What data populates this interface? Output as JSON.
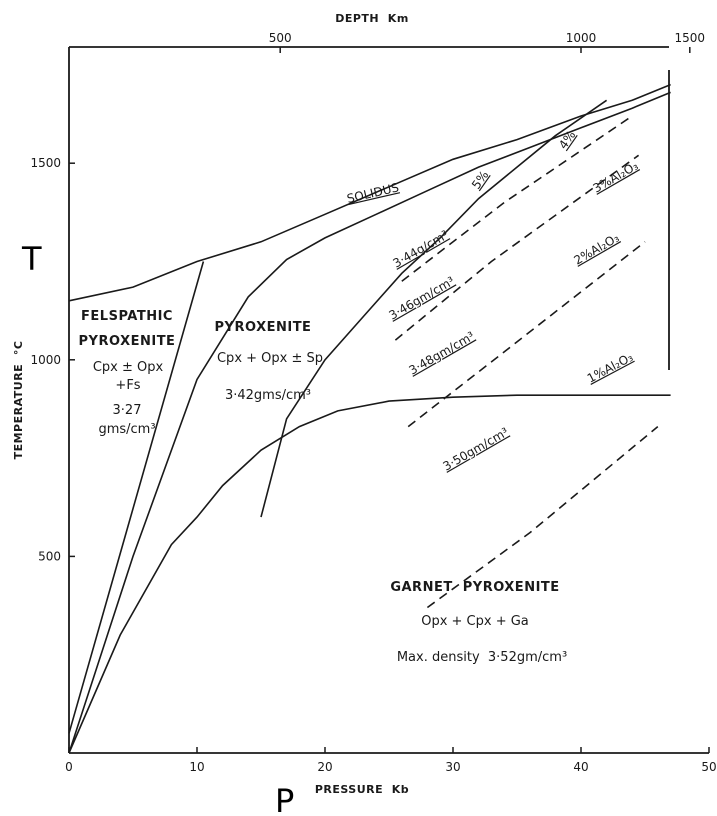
{
  "chart_data": {
    "type": "line",
    "title": "",
    "xlabel": "PRESSURE  Kb",
    "ylabel": "TEMPERATURE  °C",
    "top_axis_label": "DEPTH  Km",
    "xlim": [
      0,
      50
    ],
    "ylim": [
      0,
      1800
    ],
    "x_ticks": [
      "0",
      "10",
      "20",
      "30",
      "40",
      "50"
    ],
    "y_ticks": [
      "500",
      "1000",
      "1500"
    ],
    "top_ticks": [
      {
        "label": "500",
        "pressure": 16.5
      },
      {
        "label": "1000",
        "pressure": 40
      },
      {
        "label": "1500",
        "pressure": 48.5
      }
    ],
    "side_letters": {
      "y": "T",
      "x": "P"
    },
    "grid": false,
    "series": [
      {
        "name": "SOLIDUS",
        "style": "solid",
        "x": [
          0,
          5,
          10,
          15,
          20,
          25,
          30,
          35,
          40,
          44,
          47
        ],
        "y": [
          1150,
          1185,
          1250,
          1300,
          1370,
          1440,
          1510,
          1560,
          1620,
          1660,
          1700
        ]
      },
      {
        "name": "",
        "style": "solid",
        "x": [
          0,
          10.5
        ],
        "y": [
          50,
          1250
        ]
      },
      {
        "name": "",
        "style": "solid",
        "x": [
          0,
          5,
          10,
          14,
          17,
          20,
          24,
          28,
          32,
          36,
          40,
          44,
          47
        ],
        "y": [
          0,
          500,
          950,
          1160,
          1255,
          1310,
          1370,
          1430,
          1490,
          1540,
          1590,
          1640,
          1680
        ]
      },
      {
        "name": "",
        "style": "solid",
        "x": [
          0,
          4,
          8,
          10,
          12,
          15,
          18,
          21,
          25,
          30,
          35,
          40,
          47
        ],
        "y": [
          0,
          300,
          530,
          600,
          680,
          770,
          830,
          870,
          895,
          905,
          910,
          910,
          910
        ]
      },
      {
        "name": "5%",
        "style": "solid",
        "x": [
          15,
          17,
          20,
          23,
          26,
          29,
          32,
          35,
          38,
          42
        ],
        "y": [
          600,
          850,
          1000,
          1110,
          1220,
          1310,
          1410,
          1490,
          1570,
          1660
        ]
      },
      {
        "name": "4%",
        "style": "dashed",
        "x": [
          26,
          34,
          44
        ],
        "y": [
          1200,
          1400,
          1620
        ]
      },
      {
        "name": "3% Al2O3",
        "style": "dashed",
        "x": [
          25.5,
          33,
          44.5
        ],
        "y": [
          1050,
          1250,
          1520
        ]
      },
      {
        "name": "2% Al2O3",
        "style": "dashed",
        "x": [
          26.5,
          34,
          45
        ],
        "y": [
          830,
          1020,
          1300
        ]
      },
      {
        "name": "1% Al2O3",
        "style": "dashed",
        "x": [
          28,
          36,
          46
        ],
        "y": [
          370,
          560,
          830
        ]
      }
    ],
    "annotations": [
      {
        "text": "SOLIDUS"
      },
      {
        "text": "5%"
      },
      {
        "text": "4%"
      },
      {
        "text": "3%Al₂O₃"
      },
      {
        "text": "2%Al₂O₃"
      },
      {
        "text": "1%Al₂O₃"
      },
      {
        "text": "3·44g/cm³"
      },
      {
        "text": "3·46gm/cm³"
      },
      {
        "text": "3·48gm/cm³"
      },
      {
        "text": "3·50gm/cm³"
      }
    ]
  },
  "fields": {
    "felspathic": {
      "name1": "FELSPATHIC",
      "name2": "PYROXENITE",
      "min1": "Cpx ± Opx",
      "min2": "+Fs",
      "dens1": "3·27",
      "dens2": "gms/cm³"
    },
    "pyroxenite": {
      "name": "PYROXENITE",
      "minerals": "Cpx + Opx ± Sp",
      "density": "3·42gms/cm³"
    },
    "garnet": {
      "name": "GARNET  PYROXENITE",
      "minerals": "Opx + Cpx + Ga",
      "density": "Max. density  3·52gm/cm³"
    }
  }
}
